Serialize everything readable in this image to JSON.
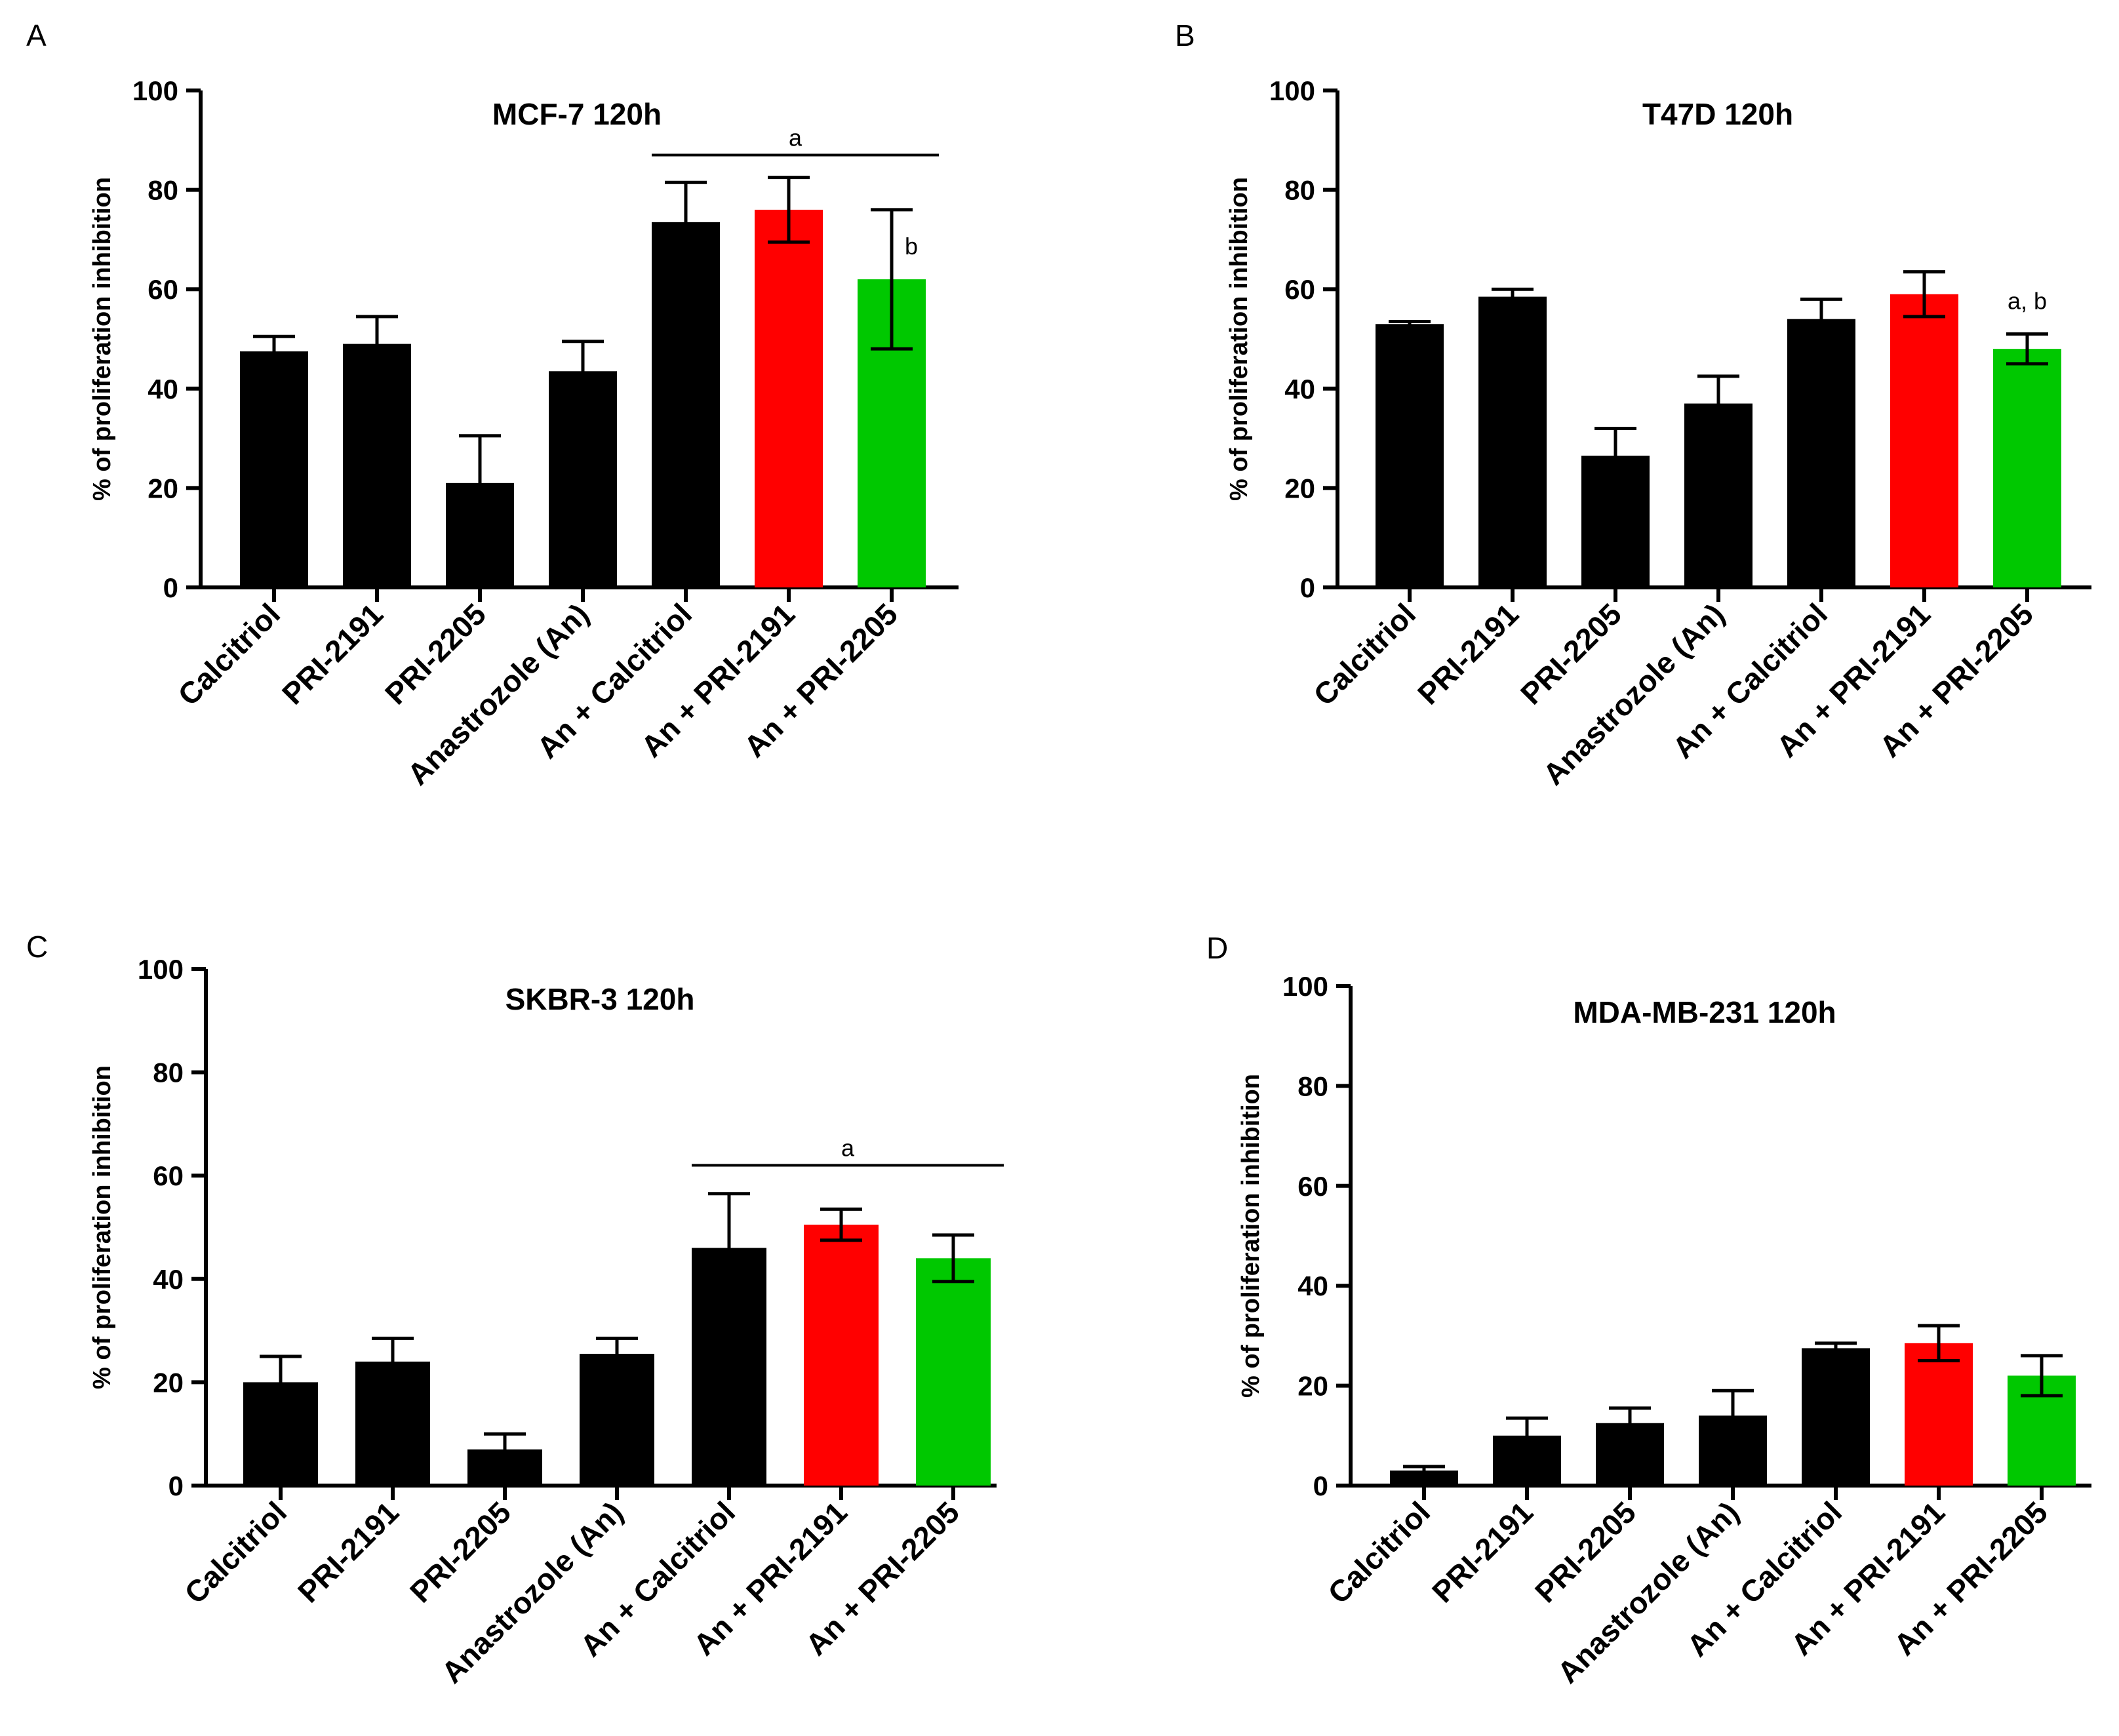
{
  "chart_data": [
    {
      "panel": "A",
      "type": "bar",
      "title": "MCF-7 120h",
      "ylabel": "% of proliferation inhibition",
      "xlabel": "",
      "ylim": [
        0,
        100
      ],
      "yticks": [
        "0",
        "20",
        "40",
        "60",
        "80",
        "100"
      ],
      "categories": [
        "Calcitriol",
        "PRI-2191",
        "PRI-2205",
        "Anastrozole (An)",
        "An + Calcitriol",
        "An + PRI-2191",
        "An + PRI-2205"
      ],
      "values": [
        47.5,
        49,
        21,
        43.5,
        73.5,
        76,
        62
      ],
      "errors": [
        3,
        5.5,
        9.5,
        6,
        8,
        6.5,
        14
      ],
      "colors": [
        "#000000",
        "#000000",
        "#000000",
        "#000000",
        "#000000",
        "#ff0000",
        "#00c800"
      ],
      "significance": [
        {
          "label": "a",
          "type": "line",
          "from": 4,
          "to": 6,
          "y": 87
        },
        {
          "label": "b",
          "type": "point",
          "index": 6,
          "y": 67
        }
      ]
    },
    {
      "panel": "B",
      "type": "bar",
      "title": "T47D 120h",
      "ylabel": "% of proliferation inhibition",
      "xlabel": "",
      "ylim": [
        0,
        100
      ],
      "yticks": [
        "0",
        "20",
        "40",
        "60",
        "80",
        "100"
      ],
      "categories": [
        "Calcitriol",
        "PRI-2191",
        "PRI-2205",
        "Anastrozole (An)",
        "An + Calcitriol",
        "An + PRI-2191",
        "An + PRI-2205"
      ],
      "values": [
        53,
        58.5,
        26.5,
        37,
        54,
        59,
        48
      ],
      "errors": [
        0.5,
        1.5,
        5.5,
        5.5,
        4,
        4.5,
        3
      ],
      "colors": [
        "#000000",
        "#000000",
        "#000000",
        "#000000",
        "#000000",
        "#ff0000",
        "#00c800"
      ],
      "significance": [
        {
          "label": "a, b",
          "type": "point",
          "index": 6,
          "y": 56
        }
      ]
    },
    {
      "panel": "C",
      "type": "bar",
      "title": "SKBR-3 120h",
      "ylabel": "% of proliferation inhibition",
      "xlabel": "",
      "ylim": [
        0,
        100
      ],
      "yticks": [
        "0",
        "20",
        "40",
        "60",
        "80",
        "100"
      ],
      "categories": [
        "Calcitriol",
        "PRI-2191",
        "PRI-2205",
        "Anastrozole (An)",
        "An + Calcitriol",
        "An + PRI-2191",
        "An + PRI-2205"
      ],
      "values": [
        20,
        24,
        7,
        25.5,
        46,
        50.5,
        44
      ],
      "errors": [
        5,
        4.5,
        3,
        3,
        10.5,
        3,
        4.5
      ],
      "colors": [
        "#000000",
        "#000000",
        "#000000",
        "#000000",
        "#000000",
        "#ff0000",
        "#00c800"
      ],
      "significance": [
        {
          "label": "a",
          "type": "line",
          "from": 4,
          "to": 6,
          "y": 62
        }
      ]
    },
    {
      "panel": "D",
      "type": "bar",
      "title": "MDA-MB-231 120h",
      "ylabel": "% of proliferation inhibition",
      "xlabel": "",
      "ylim": [
        0,
        100
      ],
      "yticks": [
        "0",
        "20",
        "40",
        "60",
        "80",
        "100"
      ],
      "categories": [
        "Calcitriol",
        "PRI-2191",
        "PRI-2205",
        "Anastrozole (An)",
        "An + Calcitriol",
        "An + PRI-2191",
        "An + PRI-2205"
      ],
      "values": [
        3,
        10,
        12.5,
        14,
        27.5,
        28.5,
        22
      ],
      "errors": [
        0.8,
        3.5,
        3,
        5,
        1,
        3.5,
        4
      ],
      "colors": [
        "#000000",
        "#000000",
        "#000000",
        "#000000",
        "#000000",
        "#ff0000",
        "#00c800"
      ],
      "significance": []
    }
  ]
}
